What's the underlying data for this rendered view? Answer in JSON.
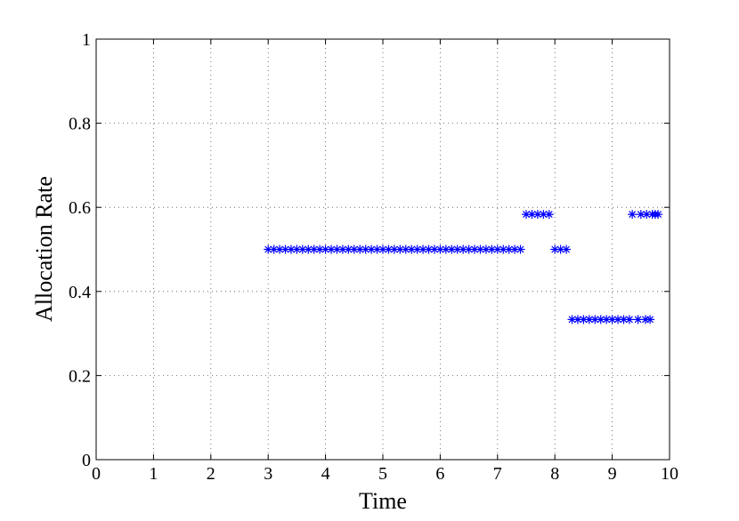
{
  "chart_data": {
    "type": "scatter",
    "x_label": "Time",
    "y_label": "Allocation Rate",
    "x": [
      3.0,
      3.1,
      3.2,
      3.3,
      3.4,
      3.5,
      3.6,
      3.7,
      3.8,
      3.9,
      4.0,
      4.1,
      4.2,
      4.3,
      4.4,
      4.5,
      4.6,
      4.7,
      4.8,
      4.9,
      5.0,
      5.1,
      5.2,
      5.3,
      5.4,
      5.5,
      5.6,
      5.7,
      5.8,
      5.9,
      6.0,
      6.1,
      6.2,
      6.3,
      6.4,
      6.5,
      6.6,
      6.7,
      6.8,
      6.9,
      7.0,
      7.1,
      7.2,
      7.3,
      7.4,
      7.5,
      7.6,
      7.7,
      7.8,
      7.9,
      8.0,
      8.1,
      8.2,
      8.3,
      8.4,
      8.5,
      8.6,
      8.7,
      8.8,
      8.9,
      9.0,
      9.1,
      9.2,
      9.3,
      9.45,
      9.58,
      9.66,
      9.35,
      9.5,
      9.6,
      9.7,
      9.75,
      9.8
    ],
    "values": [
      0.5,
      0.5,
      0.5,
      0.5,
      0.5,
      0.5,
      0.5,
      0.5,
      0.5,
      0.5,
      0.5,
      0.5,
      0.5,
      0.5,
      0.5,
      0.5,
      0.5,
      0.5,
      0.5,
      0.5,
      0.5,
      0.5,
      0.5,
      0.5,
      0.5,
      0.5,
      0.5,
      0.5,
      0.5,
      0.5,
      0.5,
      0.5,
      0.5,
      0.5,
      0.5,
      0.5,
      0.5,
      0.5,
      0.5,
      0.5,
      0.5,
      0.5,
      0.5,
      0.5,
      0.5,
      0.5833,
      0.5833,
      0.5833,
      0.5833,
      0.5833,
      0.5,
      0.5,
      0.5,
      0.3333,
      0.3333,
      0.3333,
      0.3333,
      0.3333,
      0.3333,
      0.3333,
      0.3333,
      0.3333,
      0.3333,
      0.3333,
      0.3333,
      0.3333,
      0.3333,
      0.5833,
      0.5833,
      0.5833,
      0.5833,
      0.5833,
      0.5833
    ],
    "color": "#0000ff",
    "marker": "*",
    "xlim": [
      0,
      10
    ],
    "xticks": [
      0,
      1,
      2,
      3,
      4,
      5,
      6,
      7,
      8,
      9,
      10
    ],
    "ylim": [
      0,
      1
    ],
    "yticks": [
      0,
      0.2,
      0.4,
      0.6,
      0.8,
      1
    ],
    "grid": true
  }
}
